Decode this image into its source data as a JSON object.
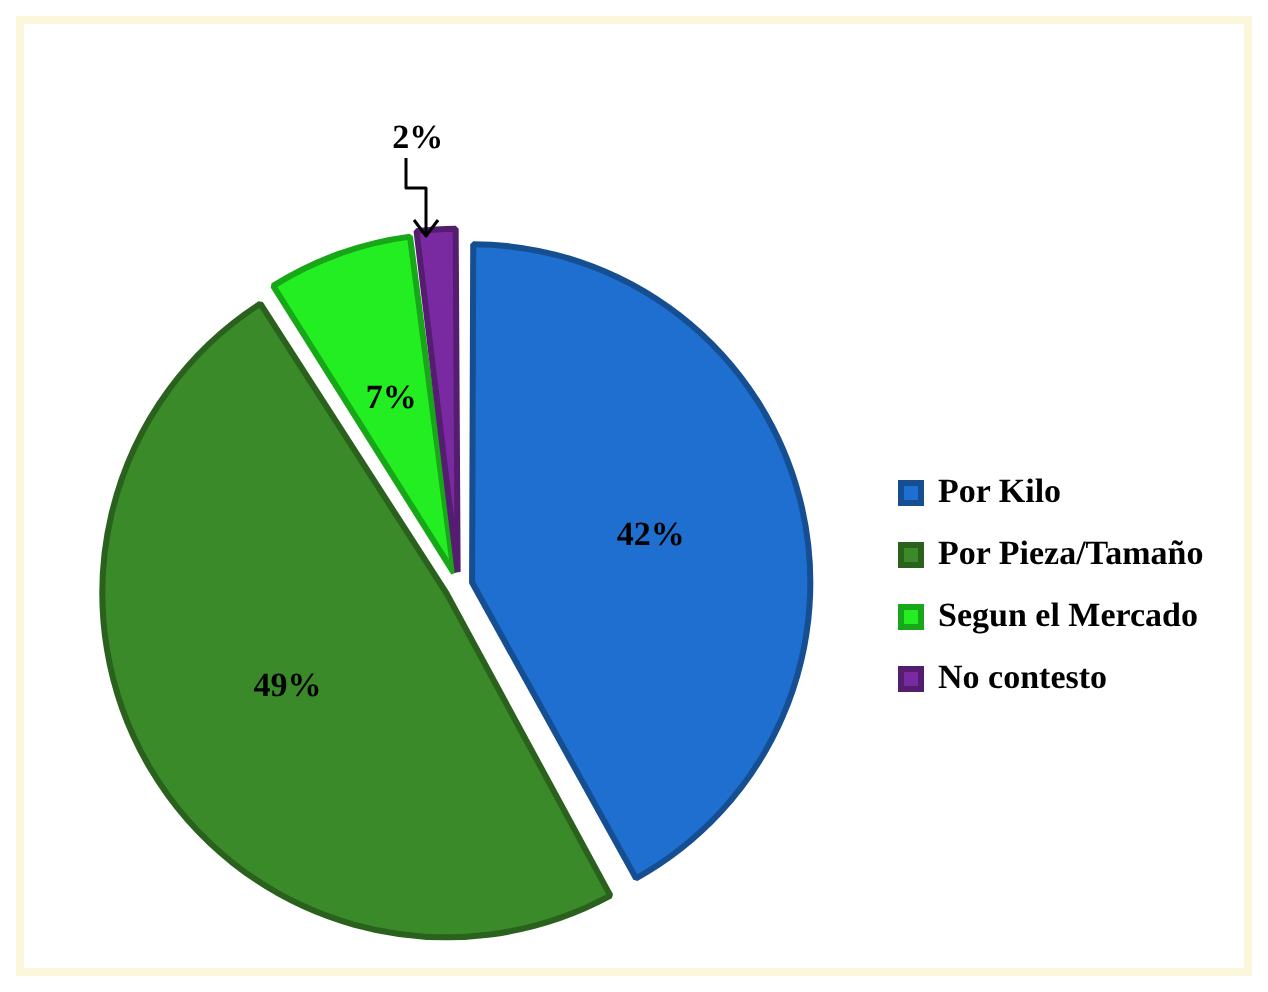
{
  "chart_data": {
    "type": "pie",
    "categories": [
      "Por Kilo",
      "Por Pieza/Tamaño",
      "Segun el Mercado",
      "No contesto"
    ],
    "values": [
      42,
      49,
      7,
      2
    ],
    "colors": [
      "#1f6fd0",
      "#3a8a2a",
      "#22ee22",
      "#7a2aa0"
    ],
    "value_labels": [
      "42%",
      "49%",
      "7%",
      "2%"
    ],
    "legend": "right"
  }
}
